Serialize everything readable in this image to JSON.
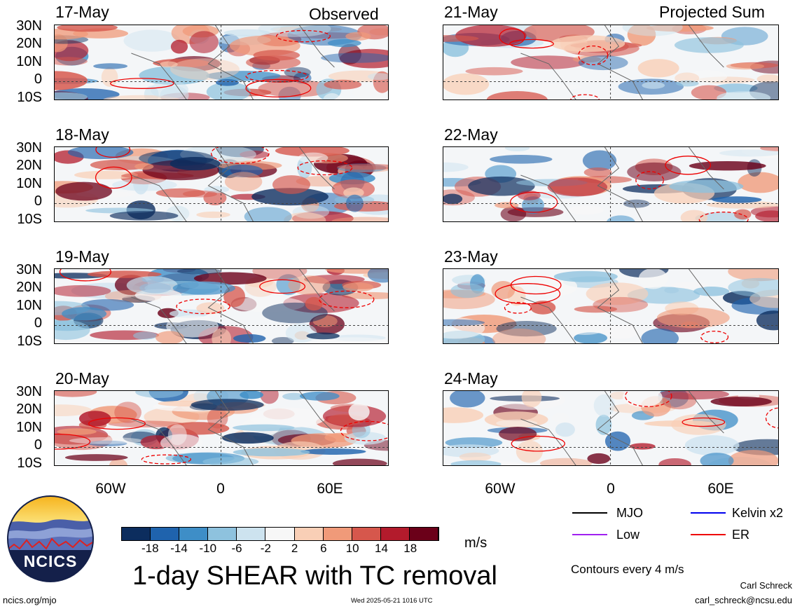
{
  "observed_title": "Observed",
  "projected_title": "Projected Sum",
  "dates": [
    "17-May",
    "18-May",
    "19-May",
    "20-May",
    "21-May",
    "22-May",
    "23-May",
    "24-May"
  ],
  "lat_labels": [
    "30N",
    "20N",
    "10N",
    "0",
    "10S"
  ],
  "lon_labels": [
    "60W",
    "0",
    "60E"
  ],
  "colorbar": {
    "labels": [
      "-18",
      "-14",
      "-10",
      "-6",
      "-2",
      "2",
      "6",
      "10",
      "14",
      "18"
    ],
    "colors": [
      "#0c2d5e",
      "#1f63ad",
      "#3e8ec7",
      "#8ec2de",
      "#cde3ef",
      "#f7f7f7",
      "#f9cfb6",
      "#f09a79",
      "#d6574c",
      "#b31b2c",
      "#6b0019"
    ],
    "units": "m/s"
  },
  "legend": {
    "mjo": {
      "label": "MJO",
      "color": "#000000"
    },
    "kelvin": {
      "label": "Kelvin x2",
      "color": "#0000ee"
    },
    "low": {
      "label": "Low",
      "color": "#a020f0"
    },
    "er": {
      "label": "ER",
      "color": "#ee0000"
    }
  },
  "contour_note": "Contours every 4 m/s",
  "main_title": "1-day SHEAR with TC removal",
  "logo_text": "NCICS",
  "footer_left": "ncics.org/mjo",
  "footer_center": "Wed 2025-05-21 1016 UTC",
  "author_name": "Carl Schreck",
  "author_email": "carl_schreck@ncsu.edu"
}
